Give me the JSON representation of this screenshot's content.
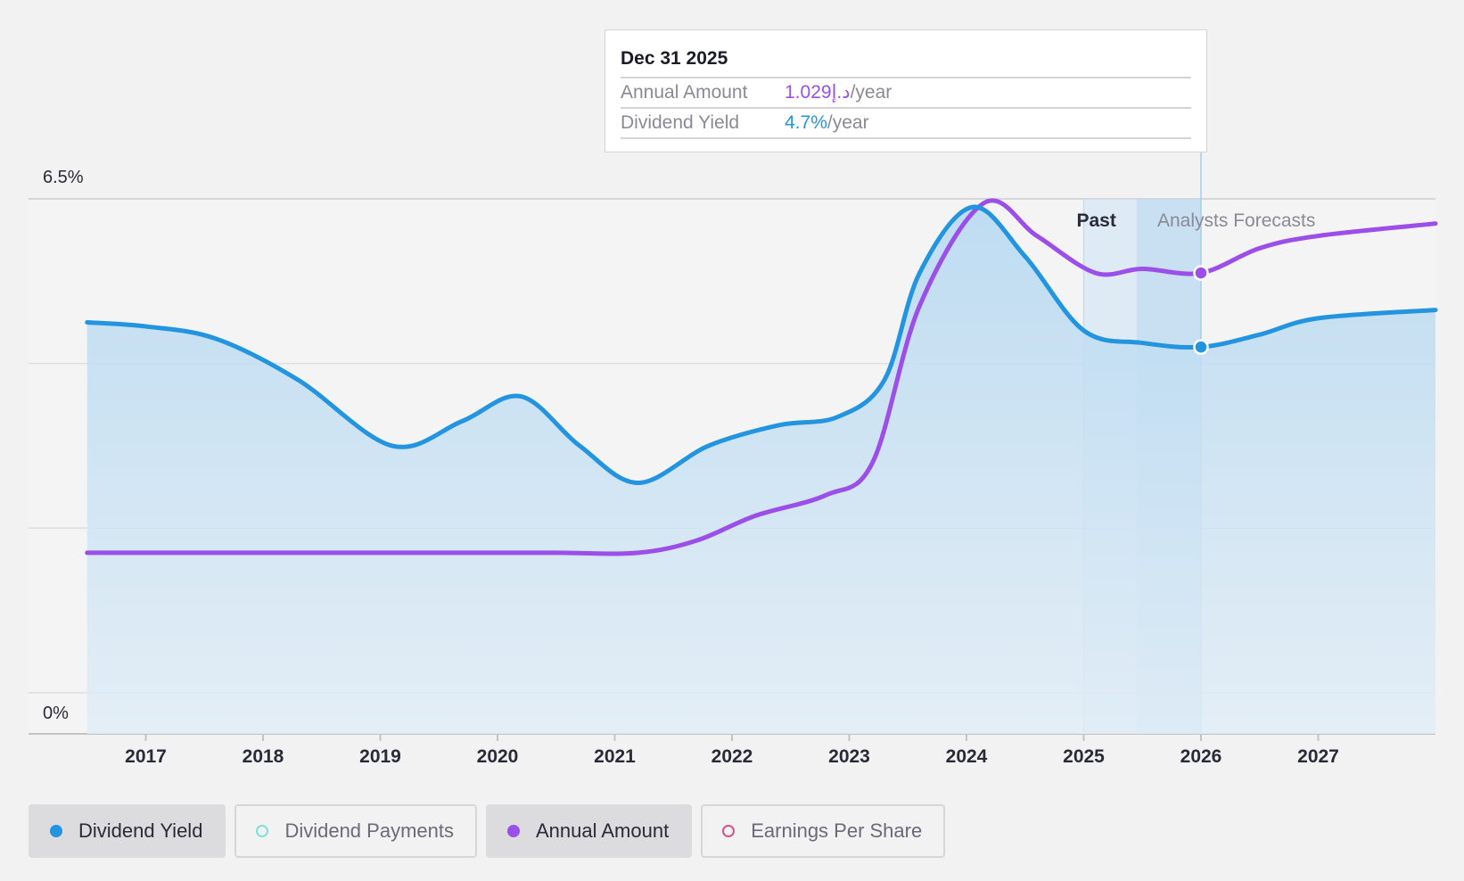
{
  "chart_data": {
    "type": "line",
    "y_top_label": "6.5%",
    "y_bottom_label": "0%",
    "ylim": [
      0,
      6.5
    ],
    "xlim": [
      2016.0,
      2028.0
    ],
    "x_ticks": [
      "2017",
      "2018",
      "2019",
      "2020",
      "2021",
      "2022",
      "2023",
      "2024",
      "2025",
      "2026",
      "2027"
    ],
    "region_labels": {
      "past": "Past",
      "forecast": "Analysts Forecasts"
    },
    "forecast_start": 2025.0,
    "highlight_x": 2026.0,
    "grid": true,
    "legend_position": "bottom-left",
    "series": [
      {
        "name": "Dividend Yield",
        "color": "#2394df",
        "filled": true,
        "points": [
          [
            2016.5,
            5.0
          ],
          [
            2017.0,
            4.95
          ],
          [
            2017.6,
            4.8
          ],
          [
            2018.3,
            4.3
          ],
          [
            2019.1,
            3.5
          ],
          [
            2019.7,
            3.8
          ],
          [
            2020.2,
            4.1
          ],
          [
            2020.7,
            3.5
          ],
          [
            2021.2,
            3.05
          ],
          [
            2021.8,
            3.5
          ],
          [
            2022.4,
            3.75
          ],
          [
            2022.9,
            3.85
          ],
          [
            2023.3,
            4.3
          ],
          [
            2023.6,
            5.6
          ],
          [
            2024.05,
            6.4
          ],
          [
            2024.5,
            5.8
          ],
          [
            2025.0,
            4.9
          ],
          [
            2025.5,
            4.75
          ],
          [
            2026.0,
            4.7
          ],
          [
            2026.5,
            4.85
          ],
          [
            2027.0,
            5.05
          ],
          [
            2028.0,
            5.15
          ]
        ]
      },
      {
        "name": "Annual Amount",
        "color": "#9c4ee8",
        "filled": false,
        "points": [
          [
            2016.5,
            2.2
          ],
          [
            2017.5,
            2.2
          ],
          [
            2018.5,
            2.2
          ],
          [
            2019.5,
            2.2
          ],
          [
            2020.5,
            2.2
          ],
          [
            2021.2,
            2.2
          ],
          [
            2021.7,
            2.35
          ],
          [
            2022.2,
            2.65
          ],
          [
            2022.8,
            2.9
          ],
          [
            2023.2,
            3.3
          ],
          [
            2023.6,
            5.2
          ],
          [
            2024.15,
            6.45
          ],
          [
            2024.6,
            6.05
          ],
          [
            2025.1,
            5.6
          ],
          [
            2025.5,
            5.65
          ],
          [
            2026.0,
            5.6
          ],
          [
            2026.5,
            5.9
          ],
          [
            2027.0,
            6.05
          ],
          [
            2028.0,
            6.2
          ]
        ]
      }
    ]
  },
  "tooltip": {
    "date": "Dec 31 2025",
    "annual_amount_label": "Annual Amount",
    "annual_amount_value": "1.029د.إ",
    "dividend_yield_label": "Dividend Yield",
    "dividend_yield_value": "4.7%",
    "unit": "/year"
  },
  "legend": [
    {
      "label": "Dividend Yield",
      "color": "#2394df",
      "active": true,
      "hollow": false
    },
    {
      "label": "Dividend Payments",
      "color": "#7fe0d4",
      "active": false,
      "hollow": true
    },
    {
      "label": "Annual Amount",
      "color": "#9c4ee8",
      "active": true,
      "hollow": false
    },
    {
      "label": "Earnings Per Share",
      "color": "#d0568a",
      "active": false,
      "hollow": true
    }
  ]
}
